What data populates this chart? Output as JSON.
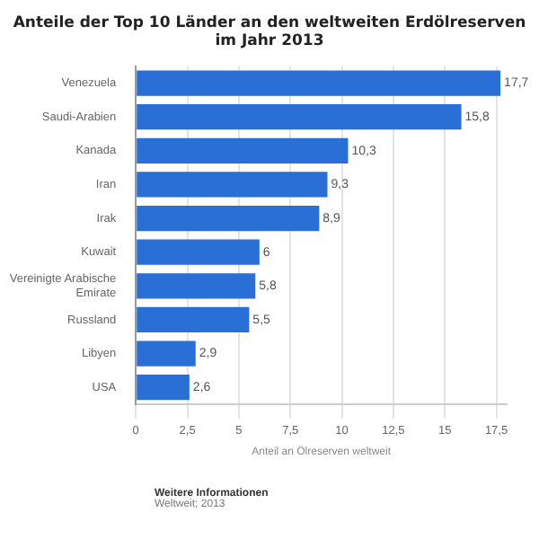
{
  "chart_data": {
    "type": "bar",
    "orientation": "horizontal",
    "title": "Anteile der Top 10 Länder an den weltweiten Erdölreserven im Jahr 2013",
    "categories": [
      "Venezuela",
      "Saudi-Arabien",
      "Kanada",
      "Iran",
      "Irak",
      "Kuwait",
      "Vereinigte Arabische Emirate",
      "Russland",
      "Libyen",
      "USA"
    ],
    "values": [
      17.7,
      15.8,
      10.3,
      9.3,
      8.9,
      6,
      5.8,
      5.5,
      2.9,
      2.6
    ],
    "color": "#2a6fd6",
    "value_labels": [
      "17,7",
      "15,8",
      "10,3",
      "9,3",
      "8,9",
      "6",
      "5,8",
      "5,5",
      "2,9",
      "2,6"
    ],
    "xlim": [
      0,
      18
    ],
    "xticks": [
      0,
      {
        "value": 2.5,
        "label": "2,5"
      },
      5,
      {
        "value": 7.5,
        "label": "7,5"
      },
      10,
      {
        "value": 12.5,
        "label": "12,5"
      },
      15,
      {
        "value": 17.5,
        "label": "17,5"
      }
    ],
    "xlabel": "Anteil an Ölreserven weltweit",
    "grid": "x",
    "annotations": [
      "Weitere Informationen",
      "Weltweit; 2013"
    ]
  }
}
